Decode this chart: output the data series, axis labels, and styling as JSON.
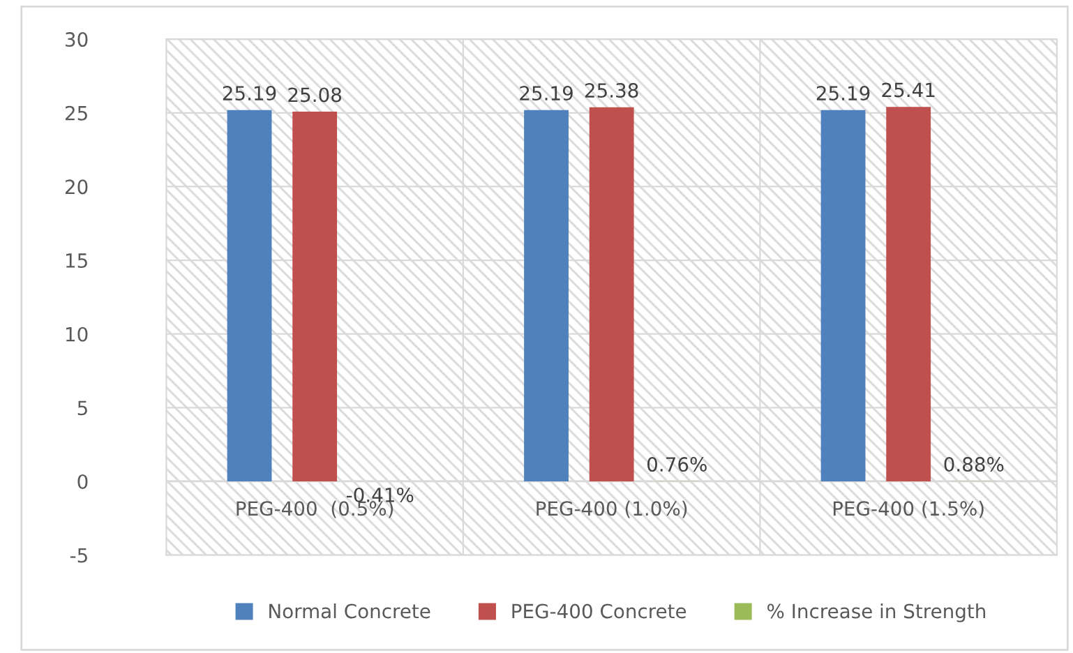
{
  "chart_data": {
    "type": "bar",
    "categories": [
      "PEG-400  (0.5%)",
      "PEG-400 (1.0%)",
      "PEG-400 (1.5%)"
    ],
    "series": [
      {
        "name": "Normal Concrete",
        "color": "#4f81bd",
        "values": [
          25.19,
          25.19,
          25.19
        ],
        "value_labels": [
          "25.19",
          "25.19",
          "25.19"
        ]
      },
      {
        "name": "PEG-400 Concrete",
        "color": "#c0504d",
        "values": [
          25.08,
          25.38,
          25.41
        ],
        "value_labels": [
          "25.08",
          "25.38",
          "25.41"
        ]
      },
      {
        "name": "% Increase in Strength",
        "color": "#9bbb59",
        "values": [
          -0.0041,
          0.0076,
          0.0088
        ],
        "value_labels": [
          "-0.41%",
          "0.76%",
          "0.88%"
        ]
      }
    ],
    "ylim": [
      -5,
      30
    ],
    "yticks": [
      -5,
      0,
      5,
      10,
      15,
      20,
      25,
      30
    ],
    "grid": true,
    "legend": "bottom"
  }
}
